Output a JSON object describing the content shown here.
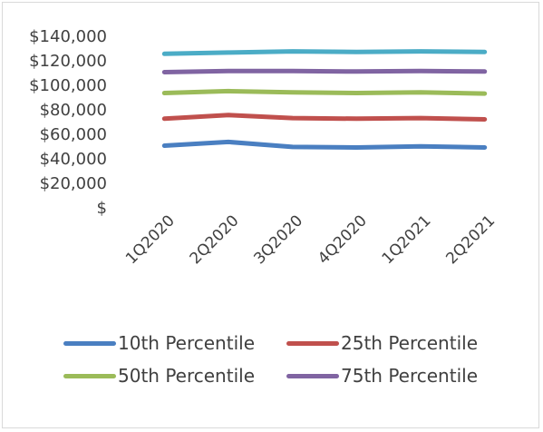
{
  "chart_data": {
    "type": "line",
    "categories": [
      "1Q2020",
      "2Q2020",
      "3Q2020",
      "4Q2020",
      "1Q2021",
      "2Q2021"
    ],
    "y_ticks": [
      "$",
      "$20,000",
      "$40,000",
      "$60,000",
      "$80,000",
      "$100,000",
      "$120,000",
      "$140,000"
    ],
    "ylim": [
      0,
      140000
    ],
    "grid": false,
    "legend_position": "bottom",
    "series": [
      {
        "name": "10th Percentile",
        "color": "#4a7fc1",
        "values": [
          50000,
          53000,
          49000,
          48500,
          49500,
          48500
        ]
      },
      {
        "name": "25th Percentile",
        "color": "#c0504d",
        "values": [
          72000,
          75000,
          72500,
          72000,
          72500,
          71500
        ]
      },
      {
        "name": "50th Percentile",
        "color": "#9bbb59",
        "values": [
          93000,
          94500,
          93500,
          93000,
          93500,
          92500
        ]
      },
      {
        "name": "75th Percentile",
        "color": "#8064a2",
        "values": [
          110000,
          111000,
          111000,
          110500,
          111000,
          110500
        ]
      },
      {
        "name": "",
        "color": "#4bacc6",
        "values": [
          125000,
          126000,
          127000,
          126500,
          127000,
          126500
        ]
      }
    ]
  }
}
